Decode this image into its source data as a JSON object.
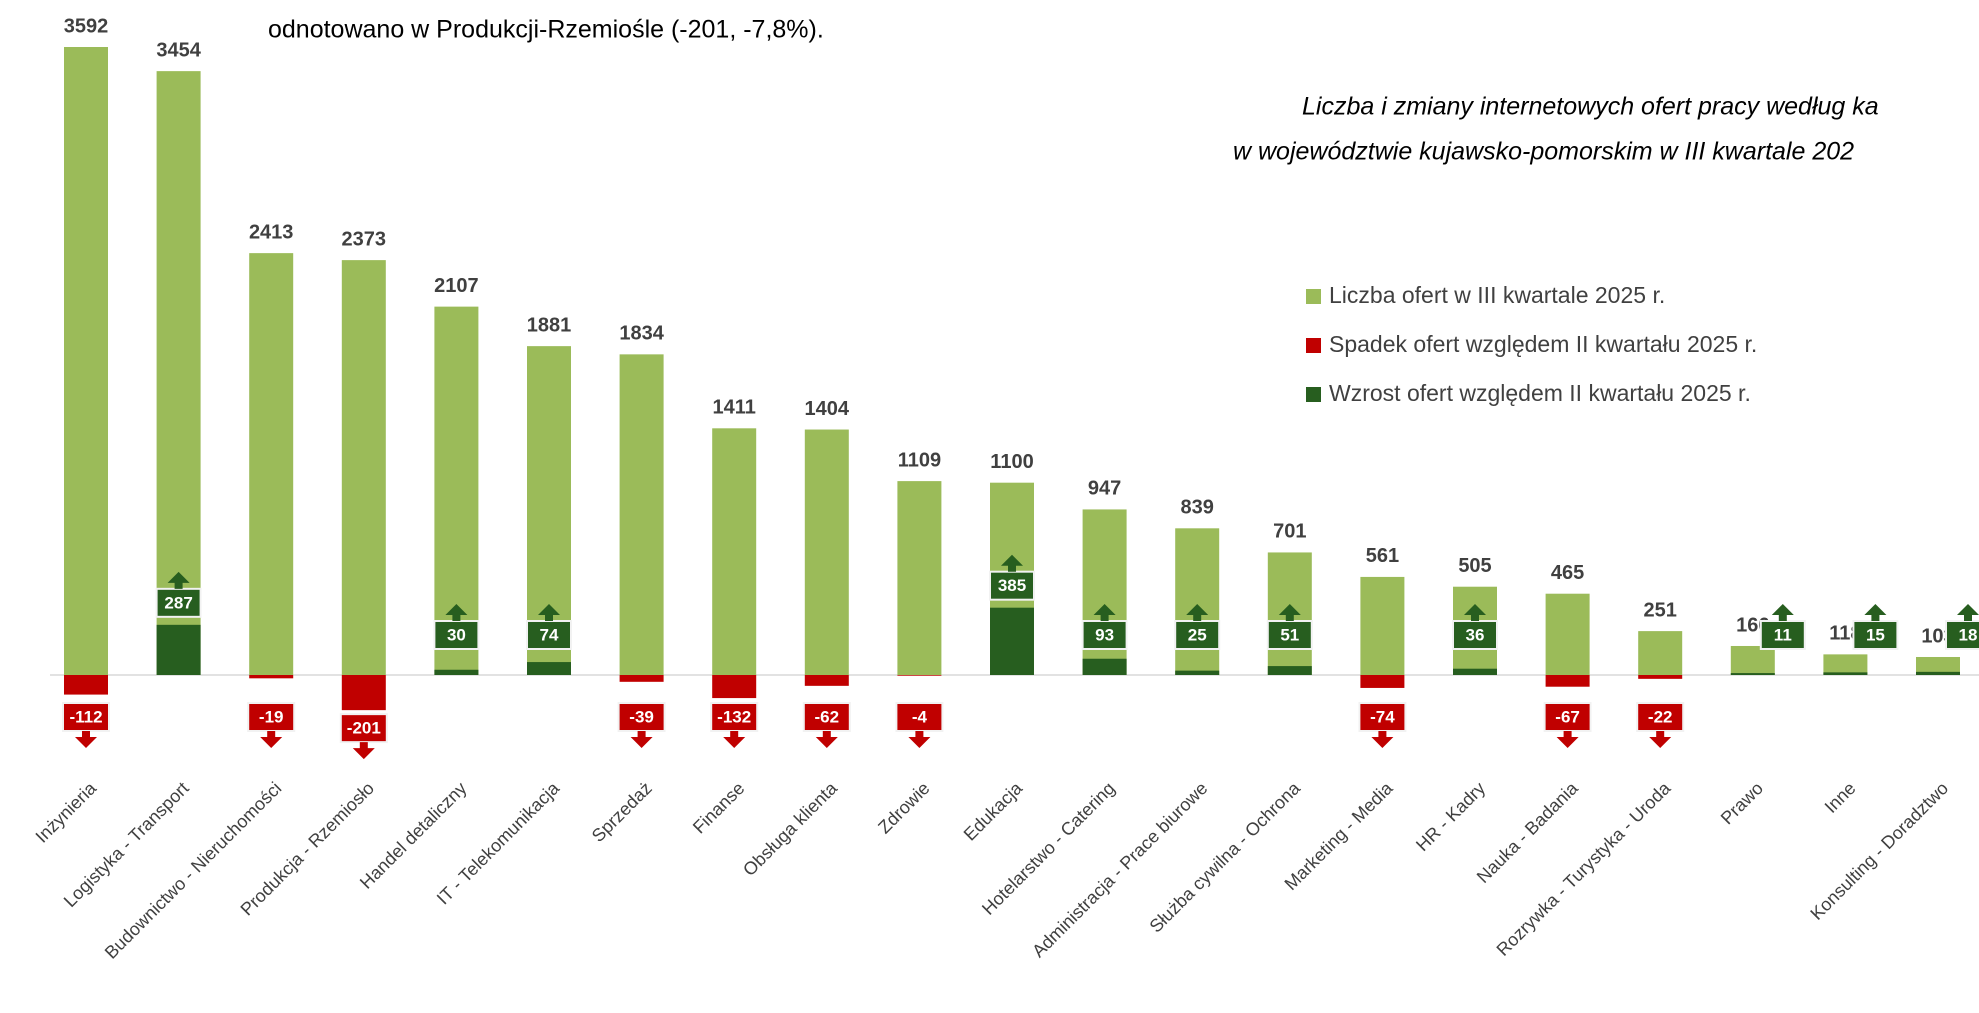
{
  "intro_text": "odnotowano w Produkcji-Rzemiośle (-201, -7,8%).",
  "chart_data": {
    "type": "bar",
    "title": [
      "Liczba i zmiany internetowych ofert pracy według ka",
      "w województwie kujawsko-pomorskim  w III kwartale 202"
    ],
    "categories": [
      "Inżynieria",
      "Logistyka - Transport",
      "Budownictwo - Nieruchomości",
      "Produkcja - Rzemiosło",
      "Handel detaliczny",
      "IT - Telekomunikacja",
      "Sprzedaż",
      "Finanse",
      "Obsługa klienta",
      "Zdrowie",
      "Edukacja",
      "Hotelarstwo - Catering",
      "Administracja - Prace biurowe",
      "Służba cywilna - Ochrona",
      "Marketing - Media",
      "HR - Kadry",
      "Nauka - Badania",
      "Rozrywka - Turystyka - Uroda",
      "Prawo",
      "Inne",
      "Konsulting - Doradztwo"
    ],
    "series": [
      {
        "name": "Liczba ofert w III kwartale 2025 r.",
        "color": "#9bbb59",
        "values": [
          3592,
          3454,
          2413,
          2373,
          2107,
          1881,
          1834,
          1411,
          1404,
          1109,
          1100,
          947,
          839,
          701,
          561,
          505,
          465,
          251,
          166,
          118,
          103
        ]
      },
      {
        "name": "Spadek ofert względem II kwartału 2025 r.",
        "color": "#c00000",
        "values": [
          -112,
          null,
          -19,
          -201,
          null,
          null,
          -39,
          -132,
          -62,
          -4,
          null,
          null,
          null,
          null,
          -74,
          null,
          -67,
          -22,
          null,
          null,
          null
        ]
      },
      {
        "name": "Wzrost ofert względem II kwartału 2025 r.",
        "color": "#275e1f",
        "values": [
          null,
          287,
          null,
          null,
          30,
          74,
          null,
          null,
          null,
          null,
          385,
          93,
          25,
          51,
          null,
          36,
          null,
          null,
          11,
          15,
          18
        ]
      }
    ],
    "legend": "right"
  }
}
